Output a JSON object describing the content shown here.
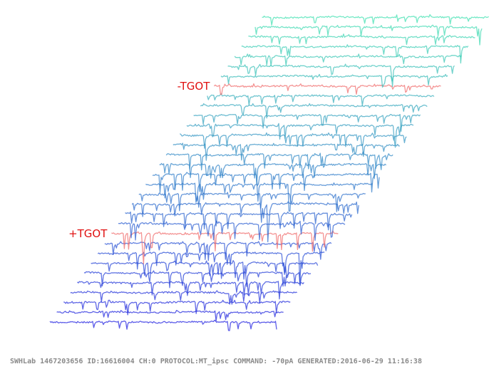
{
  "chart_data": {
    "type": "line",
    "title": "",
    "xlabel": "",
    "ylabel": "",
    "grid": false,
    "sweep_count": 32,
    "marked_sweeps": [
      {
        "label": "+TGOT",
        "sweep_index": 9,
        "color": "#f06a6a"
      },
      {
        "label": "-TGOT",
        "sweep_index": 24,
        "color": "#f06a6a"
      }
    ],
    "color_start": "#1f1fe0",
    "color_end": "#3fe0b0",
    "trace_opacity": 0.72
  },
  "footer": {
    "text": "SWHLab 1467203656 ID:16616004 CH:0 PROTOCOL:MT_ipsc COMMAND: -70pA GENERATED:2016-06-29 11:16:38"
  }
}
